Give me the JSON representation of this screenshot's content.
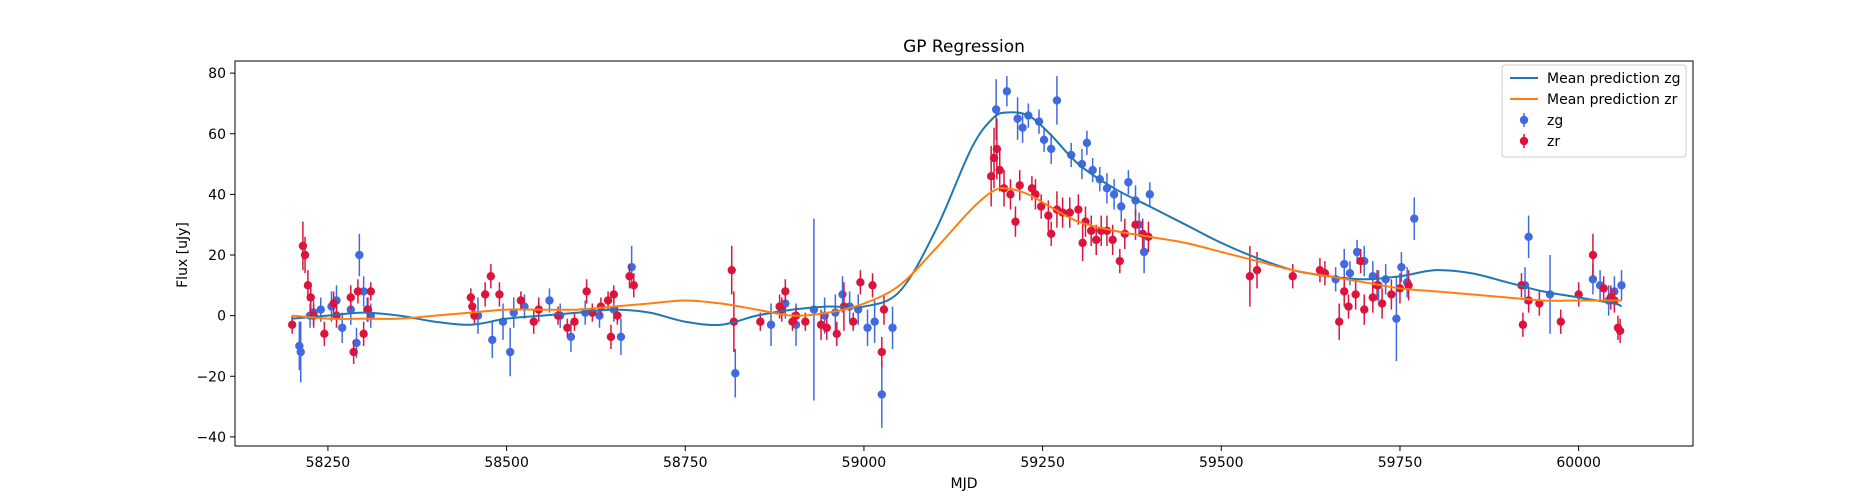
{
  "chart_data": {
    "type": "scatter",
    "title": "GP Regression",
    "xlabel": "MJD",
    "ylabel": "Flux [uJy]",
    "xlim": [
      58120,
      60160
    ],
    "ylim": [
      -43,
      84
    ],
    "xticks": [
      58250,
      58500,
      58750,
      59000,
      59250,
      59500,
      59750,
      60000
    ],
    "xtick_labels": [
      "58250",
      "58500",
      "58750",
      "59000",
      "59250",
      "59500",
      "59750",
      "60000"
    ],
    "yticks": [
      -40,
      -20,
      0,
      20,
      40,
      60,
      80
    ],
    "ytick_labels": [
      "−40",
      "−20",
      "0",
      "20",
      "40",
      "60",
      "80"
    ],
    "grid": false,
    "legend_position": "top-right",
    "legend": [
      "Mean prediction zg",
      "Mean prediction zr",
      "zg",
      "zr"
    ],
    "colors": {
      "zg_line": "#1f77b4",
      "zr_line": "#ff7f0e",
      "zg_points": "#4169e1",
      "zr_points": "#dc143c"
    },
    "lines": [
      {
        "name": "Mean prediction zg",
        "x": [
          58200,
          58250,
          58300,
          58350,
          58400,
          58450,
          58500,
          58550,
          58600,
          58650,
          58700,
          58750,
          58800,
          58850,
          58900,
          58950,
          59000,
          59050,
          59100,
          59150,
          59180,
          59200,
          59230,
          59260,
          59300,
          59350,
          59400,
          59450,
          59500,
          59550,
          59600,
          59650,
          59700,
          59750,
          59800,
          59850,
          59900,
          59950,
          60000,
          60050,
          60060
        ],
        "y": [
          -1,
          0,
          1,
          0,
          -2,
          -3,
          -1,
          0,
          1,
          2,
          1,
          -2,
          -3,
          0,
          2,
          3,
          3,
          8,
          28,
          55,
          65,
          67,
          66,
          60,
          50,
          42,
          36,
          30,
          24,
          19,
          15,
          13,
          12,
          13,
          15,
          14,
          11,
          8,
          6,
          4,
          3
        ]
      },
      {
        "name": "Mean prediction zr",
        "x": [
          58200,
          58250,
          58300,
          58350,
          58400,
          58450,
          58500,
          58550,
          58600,
          58650,
          58700,
          58750,
          58800,
          58850,
          58900,
          58950,
          59000,
          59050,
          59100,
          59150,
          59180,
          59200,
          59230,
          59260,
          59300,
          59350,
          59400,
          59450,
          59500,
          59550,
          59600,
          59650,
          59700,
          59750,
          59800,
          59850,
          59900,
          59950,
          60000,
          60050,
          60060
        ],
        "y": [
          0,
          -1,
          -1,
          -1,
          0,
          1,
          2,
          2,
          2,
          3,
          4,
          5,
          4,
          2,
          0,
          1,
          4,
          10,
          22,
          35,
          41,
          42,
          40,
          36,
          31,
          28,
          26,
          24,
          21,
          18,
          15,
          13,
          11,
          9,
          8,
          7,
          6,
          5,
          5,
          5,
          5
        ]
      }
    ],
    "series": [
      {
        "name": "zg",
        "x": [
          58210,
          58212,
          58225,
          58230,
          58240,
          58255,
          58262,
          58270,
          58282,
          58290,
          58294,
          58300,
          58305,
          58310,
          58460,
          58480,
          58495,
          58505,
          58510,
          58525,
          58545,
          58560,
          58575,
          58590,
          58610,
          58630,
          58650,
          58660,
          58675,
          58820,
          58870,
          58890,
          58905,
          58930,
          58945,
          58960,
          58970,
          58980,
          58992,
          59005,
          59015,
          59025,
          59040,
          59185,
          59200,
          59215,
          59222,
          59230,
          59245,
          59252,
          59262,
          59270,
          59290,
          59305,
          59312,
          59320,
          59330,
          59340,
          59350,
          59360,
          59370,
          59380,
          59385,
          59392,
          59400,
          59660,
          59672,
          59680,
          59690,
          59700,
          59712,
          59720,
          59730,
          59745,
          59752,
          59760,
          59770,
          59925,
          59930,
          59960,
          60020,
          60030,
          60042,
          60050,
          60060
        ],
        "y": [
          -10,
          -12,
          0,
          1,
          2,
          3,
          5,
          -4,
          2,
          -9,
          20,
          8,
          2,
          0,
          0,
          -8,
          -2,
          -12,
          1,
          3,
          2,
          5,
          0,
          -7,
          1,
          0,
          2,
          -7,
          16,
          -19,
          -3,
          4,
          -3,
          2,
          0,
          1,
          7,
          3,
          2,
          -4,
          -2,
          -26,
          -4,
          68,
          74,
          65,
          62,
          66,
          64,
          58,
          55,
          71,
          53,
          50,
          57,
          48,
          45,
          42,
          40,
          36,
          44,
          38,
          30,
          21,
          40,
          12,
          17,
          14,
          21,
          18,
          13,
          10,
          12,
          -1,
          16,
          11,
          32,
          10,
          26,
          7,
          12,
          10,
          5,
          8,
          10
        ],
        "yerr": [
          8,
          10,
          4,
          4,
          4,
          5,
          5,
          5,
          5,
          5,
          7,
          5,
          4,
          4,
          6,
          6,
          6,
          8,
          5,
          4,
          4,
          4,
          4,
          5,
          4,
          4,
          4,
          6,
          7,
          8,
          7,
          5,
          7,
          30,
          6,
          6,
          6,
          5,
          5,
          6,
          7,
          11,
          7,
          10,
          5,
          7,
          5,
          4,
          4,
          4,
          5,
          8,
          4,
          5,
          4,
          4,
          4,
          5,
          5,
          5,
          4,
          5,
          4,
          7,
          4,
          4,
          5,
          4,
          4,
          5,
          5,
          5,
          5,
          14,
          5,
          5,
          7,
          6,
          7,
          13,
          5,
          5,
          5,
          5,
          5
        ]
      },
      {
        "name": "zr",
        "x": [
          58200,
          58215,
          58218,
          58222,
          58226,
          58230,
          58245,
          58258,
          58262,
          58282,
          58286,
          58292,
          58300,
          58306,
          58310,
          58450,
          58452,
          58455,
          58470,
          58478,
          58490,
          58520,
          58538,
          58545,
          58572,
          58585,
          58595,
          58612,
          58620,
          58632,
          58642,
          58646,
          58650,
          58655,
          58672,
          58678,
          58815,
          58818,
          58855,
          58882,
          58885,
          58890,
          58900,
          58905,
          58918,
          58940,
          58948,
          58962,
          58972,
          58985,
          58995,
          59012,
          59025,
          59028,
          59178,
          59182,
          59186,
          59190,
          59196,
          59205,
          59212,
          59218,
          59235,
          59240,
          59248,
          59258,
          59262,
          59270,
          59278,
          59288,
          59300,
          59306,
          59310,
          59318,
          59325,
          59332,
          59340,
          59348,
          59358,
          59365,
          59380,
          59390,
          59398,
          59540,
          59550,
          59600,
          59638,
          59645,
          59665,
          59672,
          59678,
          59688,
          59695,
          59700,
          59712,
          59718,
          59725,
          59738,
          59750,
          59762,
          59920,
          59922,
          59930,
          59945,
          59975,
          60000,
          60020,
          60035,
          60045,
          60050,
          60055,
          60058
        ],
        "y": [
          -3,
          23,
          20,
          10,
          6,
          0,
          -6,
          4,
          0,
          6,
          -12,
          8,
          -6,
          2,
          8,
          6,
          3,
          0,
          7,
          13,
          7,
          5,
          -2,
          2,
          0,
          -4,
          -2,
          8,
          1,
          3,
          5,
          -7,
          7,
          0,
          13,
          10,
          15,
          -2,
          -2,
          3,
          2,
          8,
          -2,
          0,
          -2,
          -3,
          -4,
          -6,
          3,
          -2,
          11,
          10,
          -12,
          2,
          46,
          52,
          55,
          48,
          42,
          40,
          31,
          43,
          42,
          40,
          36,
          33,
          27,
          35,
          34,
          34,
          35,
          24,
          31,
          28,
          25,
          28,
          28,
          25,
          18,
          27,
          30,
          27,
          26,
          13,
          15,
          13,
          15,
          14,
          -2,
          8,
          3,
          7,
          18,
          2,
          6,
          10,
          4,
          7,
          9,
          10,
          10,
          -3,
          5,
          4,
          -2,
          7,
          20,
          9,
          6,
          5,
          -4,
          -5
        ],
        "yerr": [
          3,
          8,
          6,
          5,
          5,
          4,
          4,
          4,
          4,
          4,
          4,
          4,
          4,
          4,
          3,
          3,
          3,
          3,
          4,
          4,
          4,
          3,
          4,
          4,
          3,
          3,
          3,
          4,
          3,
          3,
          3,
          4,
          3,
          3,
          4,
          4,
          8,
          10,
          3,
          4,
          4,
          4,
          3,
          3,
          3,
          5,
          4,
          4,
          8,
          3,
          4,
          4,
          5,
          5,
          10,
          10,
          10,
          7,
          6,
          5,
          5,
          5,
          4,
          5,
          4,
          5,
          4,
          6,
          5,
          5,
          5,
          6,
          5,
          5,
          5,
          5,
          5,
          5,
          4,
          5,
          5,
          5,
          5,
          10,
          6,
          4,
          4,
          4,
          6,
          5,
          4,
          5,
          4,
          5,
          5,
          5,
          5,
          5,
          5,
          5,
          4,
          4,
          4,
          4,
          4,
          4,
          7,
          4,
          4,
          4,
          4,
          4
        ]
      }
    ]
  }
}
